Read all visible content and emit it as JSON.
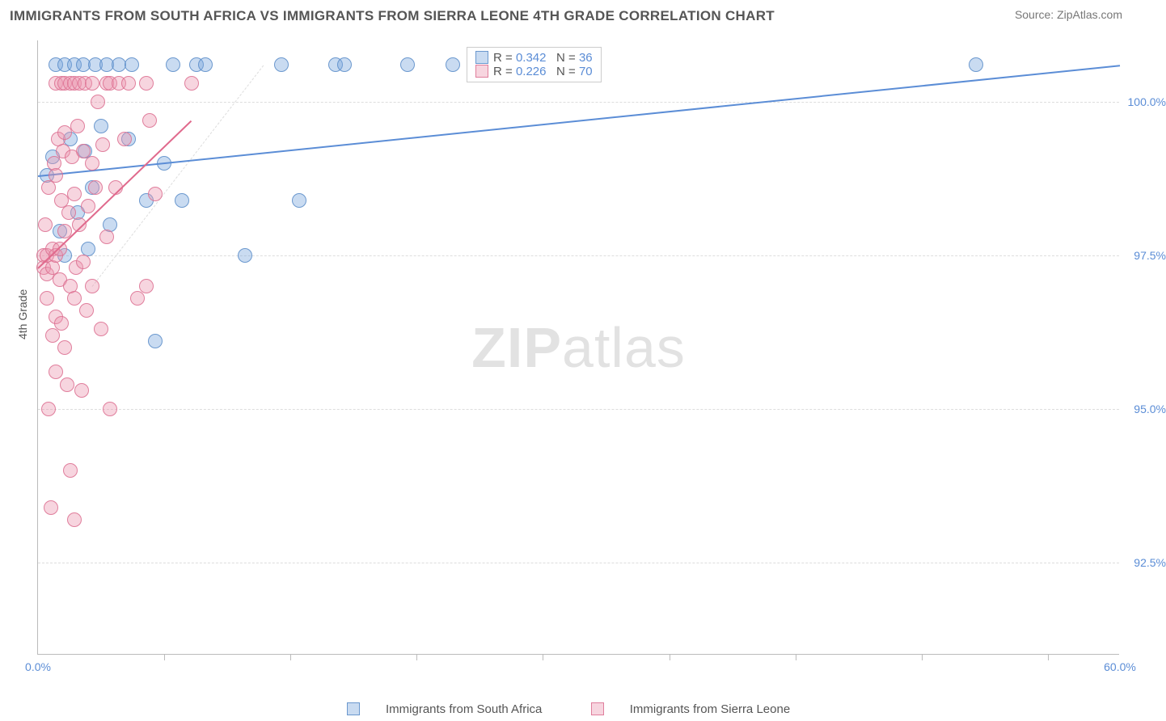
{
  "title": "IMMIGRANTS FROM SOUTH AFRICA VS IMMIGRANTS FROM SIERRA LEONE 4TH GRADE CORRELATION CHART",
  "source": "Source: ZipAtlas.com",
  "ylabel": "4th Grade",
  "watermark_bold": "ZIP",
  "watermark_light": "atlas",
  "chart": {
    "type": "scatter",
    "background_color": "#ffffff",
    "grid_color": "#dddddd",
    "axis_color": "#bbbbbb",
    "xlim": [
      0,
      60
    ],
    "ylim": [
      91,
      101
    ],
    "ytick_values": [
      92.5,
      95.0,
      97.5,
      100.0
    ],
    "ytick_labels": [
      "92.5%",
      "95.0%",
      "97.5%",
      "100.0%"
    ],
    "xtick_values": [
      0,
      60
    ],
    "xtick_labels": [
      "0.0%",
      "60.0%"
    ],
    "minor_xtick_values": [
      7,
      14,
      21,
      28,
      35,
      42,
      49,
      56
    ],
    "label_color": "#5b8dd6",
    "label_fontsize": 14,
    "marker_radius": 9,
    "marker_opacity": 0.45,
    "series": [
      {
        "name": "Immigrants from South Africa",
        "color": "#6a9be0",
        "fill": "rgba(120,165,220,0.40)",
        "stroke": "rgba(90,140,200,0.85)",
        "R": "0.342",
        "N": "36",
        "trend": {
          "x1": 0,
          "y1": 98.8,
          "x2": 60,
          "y2": 100.6,
          "color": "#5b8dd6"
        },
        "points": [
          [
            0.5,
            98.8
          ],
          [
            0.8,
            99.1
          ],
          [
            1.0,
            100.6
          ],
          [
            1.2,
            97.9
          ],
          [
            1.5,
            100.6
          ],
          [
            1.5,
            97.5
          ],
          [
            1.8,
            99.4
          ],
          [
            2.0,
            100.6
          ],
          [
            2.2,
            98.2
          ],
          [
            2.5,
            100.6
          ],
          [
            2.6,
            99.2
          ],
          [
            2.8,
            97.6
          ],
          [
            3.0,
            98.6
          ],
          [
            3.2,
            100.6
          ],
          [
            3.5,
            99.6
          ],
          [
            3.8,
            100.6
          ],
          [
            4.0,
            98.0
          ],
          [
            4.5,
            100.6
          ],
          [
            5.0,
            99.4
          ],
          [
            5.2,
            100.6
          ],
          [
            6.0,
            98.4
          ],
          [
            6.5,
            96.1
          ],
          [
            7.0,
            99.0
          ],
          [
            7.5,
            100.6
          ],
          [
            8.0,
            98.4
          ],
          [
            8.8,
            100.6
          ],
          [
            9.3,
            100.6
          ],
          [
            11.5,
            97.5
          ],
          [
            13.5,
            100.6
          ],
          [
            14.5,
            98.4
          ],
          [
            16.5,
            100.6
          ],
          [
            17.0,
            100.6
          ],
          [
            20.5,
            100.6
          ],
          [
            23.0,
            100.6
          ],
          [
            26.0,
            100.6
          ],
          [
            52.0,
            100.6
          ]
        ]
      },
      {
        "name": "Immigrants from Sierra Leone",
        "color": "#e79ab2",
        "fill": "rgba(235,150,175,0.40)",
        "stroke": "rgba(220,110,145,0.85)",
        "R": "0.226",
        "N": "70",
        "trend": {
          "x1": 0,
          "y1": 97.3,
          "x2": 8.5,
          "y2": 99.7,
          "color": "#e06a8d"
        },
        "points": [
          [
            0.3,
            97.5
          ],
          [
            0.3,
            97.3
          ],
          [
            0.4,
            98.0
          ],
          [
            0.5,
            97.5
          ],
          [
            0.5,
            97.2
          ],
          [
            0.5,
            96.8
          ],
          [
            0.6,
            98.6
          ],
          [
            0.6,
            95.0
          ],
          [
            0.7,
            93.4
          ],
          [
            0.8,
            97.6
          ],
          [
            0.8,
            97.3
          ],
          [
            0.8,
            96.2
          ],
          [
            0.9,
            99.0
          ],
          [
            1.0,
            100.3
          ],
          [
            1.0,
            98.8
          ],
          [
            1.0,
            97.5
          ],
          [
            1.0,
            96.5
          ],
          [
            1.0,
            95.6
          ],
          [
            1.1,
            99.4
          ],
          [
            1.2,
            97.6
          ],
          [
            1.2,
            97.1
          ],
          [
            1.3,
            100.3
          ],
          [
            1.3,
            98.4
          ],
          [
            1.3,
            96.4
          ],
          [
            1.4,
            99.2
          ],
          [
            1.5,
            100.3
          ],
          [
            1.5,
            99.5
          ],
          [
            1.5,
            97.9
          ],
          [
            1.5,
            96.0
          ],
          [
            1.6,
            95.4
          ],
          [
            1.7,
            98.2
          ],
          [
            1.8,
            100.3
          ],
          [
            1.8,
            97.0
          ],
          [
            1.8,
            94.0
          ],
          [
            1.9,
            99.1
          ],
          [
            2.0,
            100.3
          ],
          [
            2.0,
            98.5
          ],
          [
            2.0,
            96.8
          ],
          [
            2.0,
            93.2
          ],
          [
            2.1,
            97.3
          ],
          [
            2.2,
            99.6
          ],
          [
            2.3,
            100.3
          ],
          [
            2.3,
            98.0
          ],
          [
            2.4,
            95.3
          ],
          [
            2.5,
            99.2
          ],
          [
            2.5,
            97.4
          ],
          [
            2.6,
            100.3
          ],
          [
            2.7,
            96.6
          ],
          [
            2.8,
            98.3
          ],
          [
            3.0,
            100.3
          ],
          [
            3.0,
            99.0
          ],
          [
            3.0,
            97.0
          ],
          [
            3.2,
            98.6
          ],
          [
            3.3,
            100.0
          ],
          [
            3.5,
            96.3
          ],
          [
            3.6,
            99.3
          ],
          [
            3.8,
            100.3
          ],
          [
            3.8,
            97.8
          ],
          [
            4.0,
            100.3
          ],
          [
            4.0,
            95.0
          ],
          [
            4.3,
            98.6
          ],
          [
            4.5,
            100.3
          ],
          [
            4.8,
            99.4
          ],
          [
            5.0,
            100.3
          ],
          [
            5.5,
            96.8
          ],
          [
            6.0,
            100.3
          ],
          [
            6.0,
            97.0
          ],
          [
            6.2,
            99.7
          ],
          [
            6.5,
            98.5
          ],
          [
            8.5,
            100.3
          ]
        ]
      }
    ]
  },
  "legend_box": {
    "rows": [
      {
        "swatch_fill": "rgba(120,165,220,0.40)",
        "swatch_stroke": "rgba(90,140,200,0.85)",
        "R_label": "R =",
        "R": "0.342",
        "N_label": "N =",
        "N": "36"
      },
      {
        "swatch_fill": "rgba(235,150,175,0.40)",
        "swatch_stroke": "rgba(220,110,145,0.85)",
        "R_label": "R =",
        "R": "0.226",
        "N_label": "N =",
        "N": "70"
      }
    ]
  },
  "bottom_legend": {
    "items": [
      {
        "swatch_fill": "rgba(120,165,220,0.40)",
        "swatch_stroke": "rgba(90,140,200,0.85)",
        "label": "Immigrants from South Africa"
      },
      {
        "swatch_fill": "rgba(235,150,175,0.40)",
        "swatch_stroke": "rgba(220,110,145,0.85)",
        "label": "Immigrants from Sierra Leone"
      }
    ]
  }
}
